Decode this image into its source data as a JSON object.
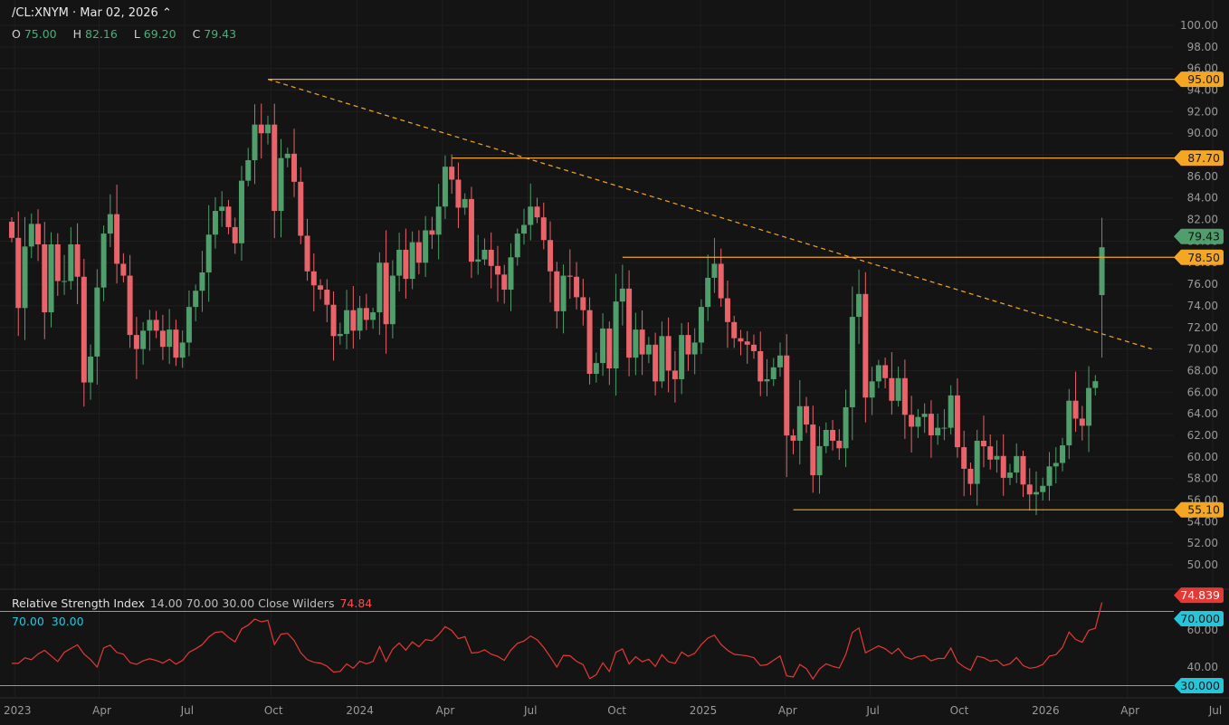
{
  "header": {
    "symbol_line": "/CL:XNYM · Mar 02, 2026 ⌃",
    "ohlc": [
      {
        "key": "O",
        "value": "75.00"
      },
      {
        "key": "H",
        "value": "82.16"
      },
      {
        "key": "L",
        "value": "69.20"
      },
      {
        "key": "C",
        "value": "79.43"
      }
    ]
  },
  "rsi_header": {
    "title": "Relative Strength Index",
    "params": "14.00  70.00  30.00  Close  Wilders",
    "value": "74.84",
    "band_upper": "70.00",
    "band_lower": "30.00"
  },
  "colors": {
    "background": "#141414",
    "up": "#4f9e6b",
    "down": "#e8636a",
    "level": "#f5a623",
    "rsi_line": "#e53935",
    "rsi_band": "#26c6da",
    "last_price_tag": "#4f9e6b",
    "rsi_tag": "#e53935"
  },
  "chart_data": [
    {
      "type": "candlestick",
      "title": "/CL:XNYM · Mar 02, 2026",
      "timeframe": "weekly",
      "ylim": [
        48,
        101
      ],
      "y_ticks": [
        "100.00",
        "98.00",
        "96.00",
        "94.00",
        "92.00",
        "90.00",
        "88.00",
        "86.00",
        "84.00",
        "82.00",
        "80.00",
        "78.00",
        "76.00",
        "74.00",
        "72.00",
        "70.00",
        "68.00",
        "66.00",
        "64.00",
        "62.00",
        "60.00",
        "58.00",
        "56.00",
        "54.00",
        "52.00",
        "50.00"
      ],
      "x_ticks": [
        "2023",
        "Apr",
        "Jul",
        "Oct",
        "2024",
        "Apr",
        "Jul",
        "Oct",
        "2025",
        "Apr",
        "Jul",
        "Oct",
        "2026",
        "Apr",
        "Jul"
      ],
      "x_range": [
        "2022-12-26",
        "2026-07-01"
      ],
      "horizontal_levels": [
        {
          "label": "95.00",
          "value": 95.0,
          "from": "2023-09-25"
        },
        {
          "label": "87.70",
          "value": 87.7,
          "from": "2024-04-08"
        },
        {
          "label": "78.50",
          "value": 78.5,
          "from": "2024-10-07"
        },
        {
          "label": "55.10",
          "value": 55.1,
          "from": "2025-04-07"
        }
      ],
      "trendline": {
        "from_date": "2023-09-25",
        "from_value": 95.0,
        "to_date": "2026-04-27",
        "to_value": 70.0,
        "style": "dashed"
      },
      "last_price": {
        "label": "79.43",
        "value": 79.43
      },
      "grid": true,
      "weeks": [
        {
          "date": "2022-12-26",
          "close": 80.3
        },
        {
          "date": "2023-01-02",
          "close": 73.8
        },
        {
          "date": "2023-01-09",
          "close": 79.5
        },
        {
          "date": "2023-01-16",
          "close": 81.6
        },
        {
          "date": "2023-01-23",
          "close": 79.7
        },
        {
          "date": "2023-01-30",
          "close": 73.4
        },
        {
          "date": "2023-02-06",
          "close": 79.7
        },
        {
          "date": "2023-02-13",
          "close": 76.3
        },
        {
          "date": "2023-02-20",
          "close": 76.3
        },
        {
          "date": "2023-02-27",
          "close": 79.7
        },
        {
          "date": "2023-03-06",
          "close": 76.7
        },
        {
          "date": "2023-03-13",
          "close": 66.9
        },
        {
          "date": "2023-03-20",
          "close": 69.3
        },
        {
          "date": "2023-03-27",
          "close": 75.7
        },
        {
          "date": "2023-04-03",
          "close": 80.7
        },
        {
          "date": "2023-04-10",
          "close": 82.5
        },
        {
          "date": "2023-04-17",
          "close": 77.9
        },
        {
          "date": "2023-04-24",
          "close": 76.8
        },
        {
          "date": "2023-05-01",
          "close": 71.3
        },
        {
          "date": "2023-05-08",
          "close": 70.0
        },
        {
          "date": "2023-05-15",
          "close": 71.7
        },
        {
          "date": "2023-05-22",
          "close": 72.7
        },
        {
          "date": "2023-05-29",
          "close": 71.7
        },
        {
          "date": "2023-06-05",
          "close": 70.2
        },
        {
          "date": "2023-06-12",
          "close": 71.8
        },
        {
          "date": "2023-06-19",
          "close": 69.2
        },
        {
          "date": "2023-06-26",
          "close": 70.6
        },
        {
          "date": "2023-07-03",
          "close": 73.9
        },
        {
          "date": "2023-07-10",
          "close": 75.4
        },
        {
          "date": "2023-07-17",
          "close": 77.1
        },
        {
          "date": "2023-07-24",
          "close": 80.6
        },
        {
          "date": "2023-07-31",
          "close": 82.8
        },
        {
          "date": "2023-08-07",
          "close": 83.2
        },
        {
          "date": "2023-08-14",
          "close": 81.3
        },
        {
          "date": "2023-08-21",
          "close": 79.8
        },
        {
          "date": "2023-08-28",
          "close": 85.6
        },
        {
          "date": "2023-09-04",
          "close": 87.5
        },
        {
          "date": "2023-09-11",
          "close": 90.8
        },
        {
          "date": "2023-09-18",
          "close": 90.0
        },
        {
          "date": "2023-09-25",
          "close": 90.8
        },
        {
          "date": "2023-10-02",
          "close": 82.8
        },
        {
          "date": "2023-10-09",
          "close": 87.7
        },
        {
          "date": "2023-10-16",
          "close": 88.1
        },
        {
          "date": "2023-10-23",
          "close": 85.5
        },
        {
          "date": "2023-10-30",
          "close": 80.5
        },
        {
          "date": "2023-11-06",
          "close": 77.2
        },
        {
          "date": "2023-11-13",
          "close": 75.9
        },
        {
          "date": "2023-11-20",
          "close": 75.5
        },
        {
          "date": "2023-11-27",
          "close": 74.1
        },
        {
          "date": "2023-12-04",
          "close": 71.2
        },
        {
          "date": "2023-12-11",
          "close": 71.4
        },
        {
          "date": "2023-12-18",
          "close": 73.6
        },
        {
          "date": "2023-12-25",
          "close": 71.7
        },
        {
          "date": "2024-01-01",
          "close": 73.8
        },
        {
          "date": "2024-01-08",
          "close": 72.7
        },
        {
          "date": "2024-01-15",
          "close": 73.4
        },
        {
          "date": "2024-01-22",
          "close": 78.0
        },
        {
          "date": "2024-01-29",
          "close": 72.3
        },
        {
          "date": "2024-02-05",
          "close": 76.8
        },
        {
          "date": "2024-02-12",
          "close": 79.2
        },
        {
          "date": "2024-02-19",
          "close": 76.5
        },
        {
          "date": "2024-02-26",
          "close": 79.9
        },
        {
          "date": "2024-03-04",
          "close": 78.0
        },
        {
          "date": "2024-03-11",
          "close": 81.0
        },
        {
          "date": "2024-03-18",
          "close": 80.6
        },
        {
          "date": "2024-03-25",
          "close": 83.2
        },
        {
          "date": "2024-04-01",
          "close": 86.9
        },
        {
          "date": "2024-04-08",
          "close": 85.7
        },
        {
          "date": "2024-04-15",
          "close": 83.1
        },
        {
          "date": "2024-04-22",
          "close": 83.9
        },
        {
          "date": "2024-04-29",
          "close": 78.1
        },
        {
          "date": "2024-05-06",
          "close": 78.3
        },
        {
          "date": "2024-05-13",
          "close": 79.2
        },
        {
          "date": "2024-05-20",
          "close": 77.7
        },
        {
          "date": "2024-05-27",
          "close": 76.9
        },
        {
          "date": "2024-06-03",
          "close": 75.5
        },
        {
          "date": "2024-06-10",
          "close": 78.5
        },
        {
          "date": "2024-06-17",
          "close": 80.7
        },
        {
          "date": "2024-06-24",
          "close": 81.5
        },
        {
          "date": "2024-07-01",
          "close": 83.2
        },
        {
          "date": "2024-07-08",
          "close": 82.2
        },
        {
          "date": "2024-07-15",
          "close": 80.1
        },
        {
          "date": "2024-07-22",
          "close": 77.2
        },
        {
          "date": "2024-07-29",
          "close": 73.5
        },
        {
          "date": "2024-08-05",
          "close": 76.8
        },
        {
          "date": "2024-08-12",
          "close": 76.7
        },
        {
          "date": "2024-08-19",
          "close": 74.8
        },
        {
          "date": "2024-08-26",
          "close": 73.6
        },
        {
          "date": "2024-09-02",
          "close": 67.7
        },
        {
          "date": "2024-09-09",
          "close": 68.7
        },
        {
          "date": "2024-09-16",
          "close": 71.9
        },
        {
          "date": "2024-09-23",
          "close": 68.2
        },
        {
          "date": "2024-09-30",
          "close": 74.4
        },
        {
          "date": "2024-10-07",
          "close": 75.6
        },
        {
          "date": "2024-10-14",
          "close": 69.2
        },
        {
          "date": "2024-10-21",
          "close": 71.8
        },
        {
          "date": "2024-10-28",
          "close": 69.5
        },
        {
          "date": "2024-11-04",
          "close": 70.4
        },
        {
          "date": "2024-11-11",
          "close": 67.0
        },
        {
          "date": "2024-11-18",
          "close": 71.2
        },
        {
          "date": "2024-11-25",
          "close": 68.0
        },
        {
          "date": "2024-12-02",
          "close": 67.2
        },
        {
          "date": "2024-12-09",
          "close": 71.3
        },
        {
          "date": "2024-12-16",
          "close": 69.5
        },
        {
          "date": "2024-12-23",
          "close": 70.6
        },
        {
          "date": "2024-12-30",
          "close": 73.9
        },
        {
          "date": "2025-01-06",
          "close": 76.6
        },
        {
          "date": "2025-01-13",
          "close": 77.9
        },
        {
          "date": "2025-01-20",
          "close": 74.7
        },
        {
          "date": "2025-01-27",
          "close": 72.5
        },
        {
          "date": "2025-02-03",
          "close": 71.0
        },
        {
          "date": "2025-02-10",
          "close": 70.7
        },
        {
          "date": "2025-02-17",
          "close": 70.4
        },
        {
          "date": "2025-02-24",
          "close": 69.8
        },
        {
          "date": "2025-03-03",
          "close": 67.0
        },
        {
          "date": "2025-03-10",
          "close": 67.2
        },
        {
          "date": "2025-03-17",
          "close": 68.3
        },
        {
          "date": "2025-03-24",
          "close": 69.4
        },
        {
          "date": "2025-03-31",
          "close": 61.99
        },
        {
          "date": "2025-04-07",
          "close": 61.5
        },
        {
          "date": "2025-04-14",
          "close": 64.7
        },
        {
          "date": "2025-04-21",
          "close": 63.0
        },
        {
          "date": "2025-04-28",
          "close": 58.3
        },
        {
          "date": "2025-05-05",
          "close": 61.0
        },
        {
          "date": "2025-05-12",
          "close": 62.5
        },
        {
          "date": "2025-05-19",
          "close": 61.5
        },
        {
          "date": "2025-05-26",
          "close": 60.8
        },
        {
          "date": "2025-06-02",
          "close": 64.6
        },
        {
          "date": "2025-06-09",
          "close": 72.98
        },
        {
          "date": "2025-06-16",
          "close": 75.1
        },
        {
          "date": "2025-06-23",
          "close": 65.5
        },
        {
          "date": "2025-06-30",
          "close": 67.0
        },
        {
          "date": "2025-07-07",
          "close": 68.5
        },
        {
          "date": "2025-07-14",
          "close": 67.3
        },
        {
          "date": "2025-07-21",
          "close": 65.2
        },
        {
          "date": "2025-07-28",
          "close": 67.3
        },
        {
          "date": "2025-08-04",
          "close": 63.9
        },
        {
          "date": "2025-08-11",
          "close": 62.8
        },
        {
          "date": "2025-08-18",
          "close": 63.7
        },
        {
          "date": "2025-08-25",
          "close": 64.0
        },
        {
          "date": "2025-09-01",
          "close": 62.0
        },
        {
          "date": "2025-09-08",
          "close": 62.7
        },
        {
          "date": "2025-09-15",
          "close": 62.7
        },
        {
          "date": "2025-09-22",
          "close": 65.7
        },
        {
          "date": "2025-09-29",
          "close": 60.9
        },
        {
          "date": "2025-10-06",
          "close": 58.9
        },
        {
          "date": "2025-10-13",
          "close": 57.5
        },
        {
          "date": "2025-10-20",
          "close": 61.5
        },
        {
          "date": "2025-10-27",
          "close": 60.98
        },
        {
          "date": "2025-11-03",
          "close": 59.75
        },
        {
          "date": "2025-11-10",
          "close": 60.09
        },
        {
          "date": "2025-11-17",
          "close": 58.06
        },
        {
          "date": "2025-11-24",
          "close": 58.55
        },
        {
          "date": "2025-12-01",
          "close": 60.08
        },
        {
          "date": "2025-12-08",
          "close": 57.44
        },
        {
          "date": "2025-12-15",
          "close": 56.52
        },
        {
          "date": "2025-12-22",
          "close": 56.74
        },
        {
          "date": "2025-12-29",
          "close": 57.32
        },
        {
          "date": "2026-01-05",
          "close": 59.12
        },
        {
          "date": "2026-01-12",
          "close": 59.44
        },
        {
          "date": "2026-01-19",
          "close": 61.07
        },
        {
          "date": "2026-01-26",
          "close": 65.21
        },
        {
          "date": "2026-02-02",
          "close": 63.55
        },
        {
          "date": "2026-02-09",
          "close": 62.89
        },
        {
          "date": "2026-02-16",
          "close": 66.39
        },
        {
          "date": "2026-02-23",
          "close": 67.02
        },
        {
          "date": "2026-03-02",
          "open": 75.0,
          "high": 82.16,
          "low": 69.2,
          "close": 79.43
        }
      ]
    },
    {
      "type": "line",
      "title": "Relative Strength Index",
      "params": {
        "length": 14.0,
        "upper": 70.0,
        "lower": 30.0,
        "source": "Close",
        "method": "Wilders"
      },
      "ylim": [
        20,
        80
      ],
      "y_ticks": [
        "60.00",
        "40.00"
      ],
      "bands": [
        70.0,
        30.0
      ],
      "last_value": {
        "label": "74.839",
        "value": 74.839
      },
      "band_labels": [
        "70.000",
        "30.000"
      ]
    }
  ]
}
